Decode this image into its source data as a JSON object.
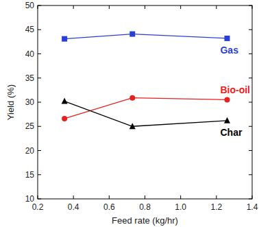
{
  "chart_data": {
    "type": "line",
    "x_label": "Feed rate (kg/hr)",
    "y_label": "Yield (%)",
    "x": [
      0.35,
      0.73,
      1.26
    ],
    "series": [
      {
        "name": "Gas",
        "color": "#2a3fd6",
        "marker": "square",
        "values": [
          43.1,
          44.1,
          43.2
        ]
      },
      {
        "name": "Bio-oil",
        "color": "#e8201e",
        "marker": "circle",
        "values": [
          26.6,
          30.9,
          30.5
        ]
      },
      {
        "name": "Char",
        "color": "#000000",
        "marker": "triangle",
        "values": [
          30.2,
          25.0,
          26.2
        ]
      }
    ],
    "xlim": [
      0.2,
      1.4
    ],
    "xticks": [
      0.2,
      0.4,
      0.6,
      0.8,
      {
        "value": 1.0,
        "label": "1.0"
      },
      1.2,
      1.4
    ],
    "ylim": [
      10,
      50
    ],
    "yticks": [
      10,
      15,
      20,
      25,
      30,
      35,
      40,
      45,
      50
    ],
    "grid": false
  }
}
